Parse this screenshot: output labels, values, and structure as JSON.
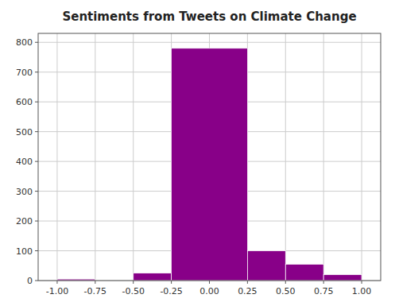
{
  "chart_data": {
    "type": "histogram",
    "title": "Sentiments from Tweets on Climate Change",
    "bins": [
      -1.0,
      -0.75,
      -0.5,
      -0.25,
      0.25,
      0.5,
      0.75,
      1.0
    ],
    "values": [
      5,
      0,
      25,
      780,
      100,
      55,
      20
    ],
    "color": "#880088",
    "xlim": [
      -1.125,
      1.125
    ],
    "ylim": [
      0,
      830
    ],
    "xticks": [
      {
        "value": -1.0,
        "label": "-1.00"
      },
      {
        "value": -0.75,
        "label": "-0.75"
      },
      {
        "value": -0.5,
        "label": "-0.50"
      },
      {
        "value": -0.25,
        "label": "-0.25"
      },
      {
        "value": 0.0,
        "label": "0.00"
      },
      {
        "value": 0.25,
        "label": "0.25"
      },
      {
        "value": 0.5,
        "label": "0.50"
      },
      {
        "value": 0.75,
        "label": "0.75"
      },
      {
        "value": 1.0,
        "label": "1.00"
      }
    ],
    "yticks": [
      0,
      100,
      200,
      300,
      400,
      500,
      600,
      700,
      800
    ],
    "grid": true
  }
}
